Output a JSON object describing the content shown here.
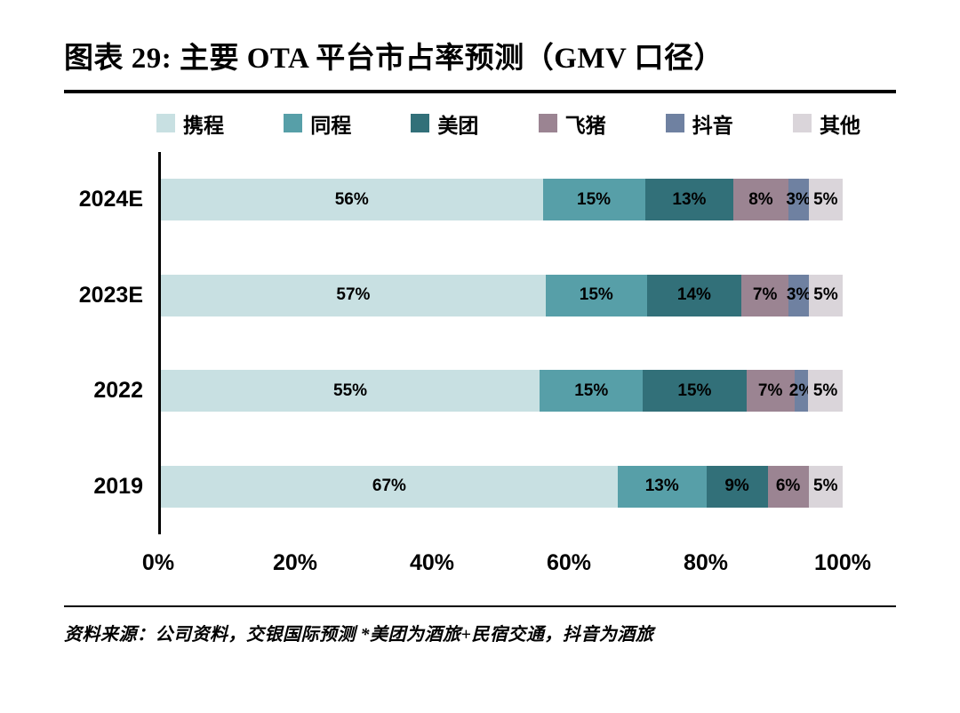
{
  "title": "图表 29: 主要 OTA 平台市占率预测（GMV 口径）",
  "footer": "资料来源：公司资料，交银国际预测  *美团为酒旅+民宿交通，抖音为酒旅",
  "chart_data": {
    "type": "bar",
    "orientation": "horizontal",
    "stacked": true,
    "title": "主要 OTA 平台市占率预测（GMV 口径）",
    "categories": [
      "2024E",
      "2023E",
      "2022",
      "2019"
    ],
    "series": [
      {
        "name": "携程",
        "color": "#c8e0e2",
        "values": [
          56,
          57,
          55,
          67
        ]
      },
      {
        "name": "同程",
        "color": "#579fa8",
        "values": [
          15,
          15,
          15,
          13
        ]
      },
      {
        "name": "美团",
        "color": "#327079",
        "values": [
          13,
          14,
          15,
          9
        ]
      },
      {
        "name": "飞猪",
        "color": "#9b8492",
        "values": [
          8,
          7,
          7,
          6
        ]
      },
      {
        "name": "抖音",
        "color": "#6f81a1",
        "values": [
          3,
          3,
          2,
          0
        ]
      },
      {
        "name": "其他",
        "color": "#dad5da",
        "values": [
          5,
          5,
          5,
          5
        ]
      }
    ],
    "x_ticks": [
      "0%",
      "20%",
      "40%",
      "60%",
      "80%",
      "100%"
    ],
    "xlim": [
      0,
      100
    ],
    "grid": false,
    "legend_position": "top",
    "value_label_format": "{value}%"
  }
}
